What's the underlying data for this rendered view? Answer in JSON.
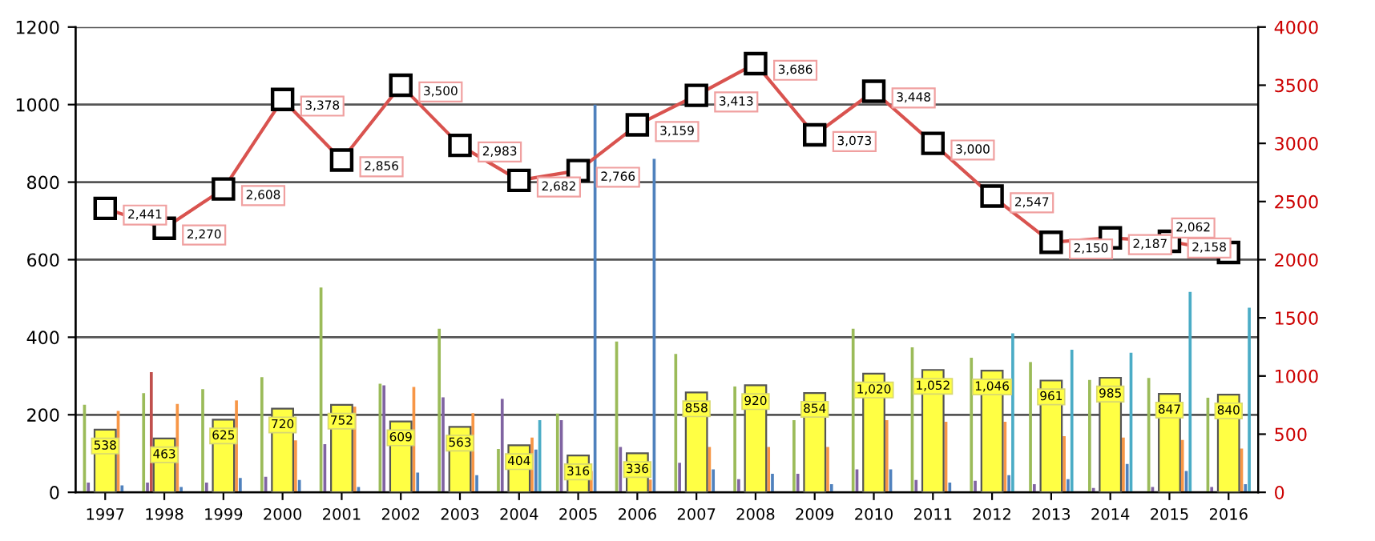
{
  "chart_data": {
    "type": "bar",
    "categories": [
      "1997",
      "1998",
      "1999",
      "2000",
      "2001",
      "2002",
      "2003",
      "2004",
      "2005",
      "2006",
      "2007",
      "2008",
      "2009",
      "2010",
      "2011",
      "2012",
      "2013",
      "2014",
      "2015",
      "2016"
    ],
    "series": [
      {
        "color": "#9bbb59",
        "values": [
          226,
          256,
          266,
          297,
          528,
          280,
          422,
          112,
          203,
          389,
          357,
          273,
          186,
          422,
          374,
          347,
          336,
          290,
          295,
          244
        ]
      },
      {
        "color": "#8064a2",
        "values": [
          25,
          25,
          25,
          40,
          124,
          276,
          245,
          241,
          186,
          117,
          76,
          34,
          48,
          59,
          32,
          30,
          21,
          11,
          14,
          14
        ]
      },
      {
        "color": "#c0504d",
        "values": [
          null,
          310,
          null,
          null,
          null,
          null,
          null,
          null,
          null,
          null,
          null,
          null,
          null,
          null,
          null,
          null,
          null,
          null,
          null,
          null
        ]
      },
      {
        "color": "#ffff44",
        "axis": "y2",
        "values": [
          538,
          463,
          625,
          720,
          752,
          609,
          563,
          404,
          316,
          336,
          858,
          920,
          854,
          1020,
          1052,
          1046,
          961,
          985,
          847,
          840
        ],
        "value_labels": [
          "538",
          "463",
          "625",
          "720",
          "752",
          "609",
          "563",
          "404",
          "316",
          "336",
          "858",
          "920",
          "854",
          "1,020",
          "1,052",
          "1,046",
          "961",
          "985",
          "847",
          "840"
        ]
      },
      {
        "color": "#f79646",
        "values": [
          210,
          228,
          237,
          134,
          221,
          272,
          204,
          141,
          55,
          33,
          117,
          117,
          117,
          186,
          182,
          182,
          145,
          141,
          135,
          113
        ]
      },
      {
        "color": "#4f81bd",
        "values": [
          18,
          14,
          37,
          32,
          14,
          51,
          44,
          110,
          1000,
          860,
          59,
          48,
          21,
          59,
          25,
          44,
          34,
          73,
          55,
          21
        ]
      },
      {
        "color": "#4bacc6",
        "values": [
          null,
          null,
          null,
          null,
          null,
          null,
          null,
          186,
          null,
          null,
          null,
          null,
          null,
          null,
          null,
          410,
          368,
          360,
          517,
          476
        ]
      },
      {
        "type": "line",
        "color": "#d9534f",
        "axis": "y2",
        "marker": "square",
        "values": [
          2441,
          2270,
          2608,
          3378,
          2856,
          3500,
          2983,
          2682,
          2766,
          3159,
          3413,
          3686,
          3073,
          3448,
          3000,
          2547,
          2150,
          2187,
          2158,
          2062
        ],
        "value_labels": [
          "2,441",
          "2,270",
          "2,608",
          "3,378",
          "2,856",
          "3,500",
          "2,983",
          "2,682",
          "2,766",
          "3,159",
          "3,413",
          "3,686",
          "3,073",
          "3,448",
          "3,000",
          "2,547",
          "2,150",
          "2,187",
          "2,158",
          "2,062"
        ]
      }
    ],
    "ylim": [
      0,
      1200
    ],
    "yticks": [
      0,
      200,
      400,
      600,
      800,
      1000,
      1200
    ],
    "y2lim": [
      0,
      4000
    ],
    "y2ticks": [
      0,
      500,
      1000,
      1500,
      2000,
      2500,
      3000,
      3500,
      4000
    ],
    "grid": "y",
    "legend": false
  }
}
